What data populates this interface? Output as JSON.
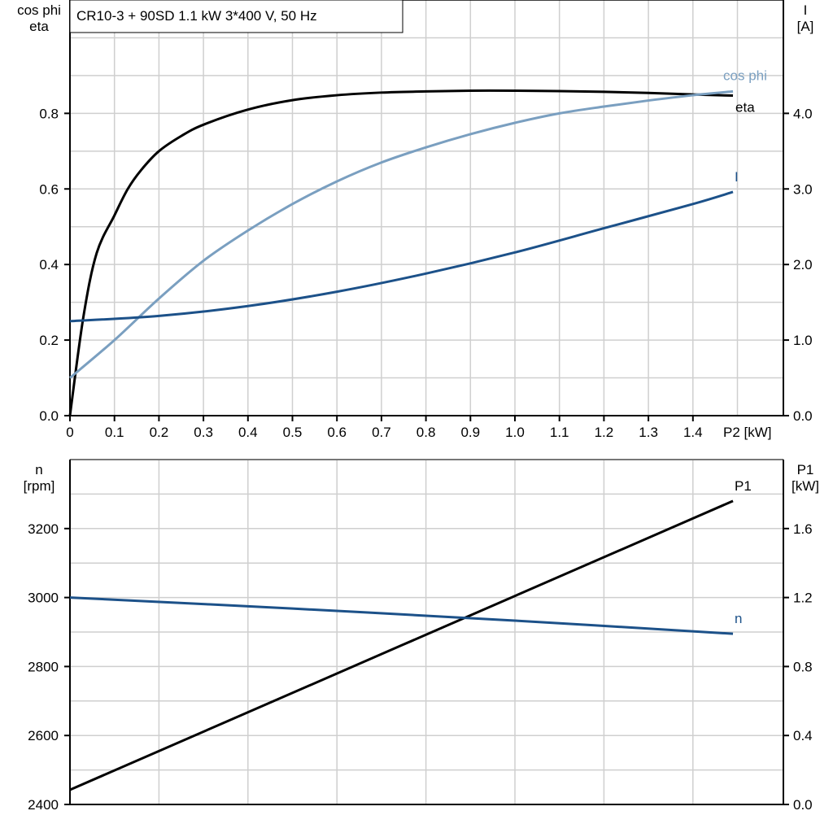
{
  "chart_data": [
    {
      "type": "line",
      "title": "CR10-3 + 90SD   1.1 kW   3*400 V, 50 Hz",
      "xlabel": "P2 [kW]",
      "ylabel_left": [
        "cos phi",
        "eta"
      ],
      "ylabel_right": [
        "I",
        "[A]"
      ],
      "xlim": [
        0,
        1.6
      ],
      "ylim_left": [
        0,
        1.1
      ],
      "ylim_right": [
        0,
        5.5
      ],
      "x_ticks": [
        "0",
        "0.1",
        "0.2",
        "0.3",
        "0.4",
        "0.5",
        "0.6",
        "0.7",
        "0.8",
        "0.9",
        "1.0",
        "1.1",
        "1.2",
        "1.3",
        "1.4"
      ],
      "y_ticks_left": [
        "0.0",
        "0.2",
        "0.4",
        "0.6",
        "0.8"
      ],
      "y_ticks_right": [
        "0.0",
        "1.0",
        "2.0",
        "3.0",
        "4.0"
      ],
      "grid": true,
      "series": [
        {
          "name": "eta",
          "axis": "left",
          "color": "#000000",
          "x": [
            0,
            0.03,
            0.06,
            0.1,
            0.13,
            0.16,
            0.2,
            0.25,
            0.3,
            0.4,
            0.5,
            0.6,
            0.7,
            0.8,
            0.9,
            1.0,
            1.1,
            1.2,
            1.3,
            1.4,
            1.49
          ],
          "y": [
            0,
            0.26,
            0.43,
            0.53,
            0.6,
            0.65,
            0.7,
            0.74,
            0.77,
            0.81,
            0.835,
            0.848,
            0.855,
            0.858,
            0.86,
            0.86,
            0.859,
            0.857,
            0.854,
            0.85,
            0.847
          ]
        },
        {
          "name": "cos phi",
          "axis": "left",
          "color": "#7a9fc0",
          "x": [
            0,
            0.1,
            0.2,
            0.3,
            0.4,
            0.5,
            0.6,
            0.7,
            0.8,
            0.9,
            1.0,
            1.1,
            1.2,
            1.3,
            1.4,
            1.49
          ],
          "y": [
            0.1,
            0.2,
            0.31,
            0.41,
            0.49,
            0.56,
            0.62,
            0.67,
            0.71,
            0.745,
            0.775,
            0.8,
            0.818,
            0.834,
            0.848,
            0.858
          ]
        },
        {
          "name": "I",
          "axis": "right",
          "color": "#1c5189",
          "x": [
            0,
            0.2,
            0.4,
            0.6,
            0.8,
            1.0,
            1.2,
            1.4,
            1.49
          ],
          "y": [
            1.25,
            1.32,
            1.45,
            1.64,
            1.88,
            2.16,
            2.48,
            2.8,
            2.96
          ]
        }
      ]
    },
    {
      "type": "line",
      "ylabel_left": [
        "n",
        "[rpm]"
      ],
      "ylabel_right": [
        "P1",
        "[kW]"
      ],
      "xlim": [
        0,
        1.6
      ],
      "ylim_left": [
        2400,
        3400
      ],
      "ylim_right": [
        0,
        2.0
      ],
      "y_ticks_left": [
        "2400",
        "2600",
        "2800",
        "3000",
        "3200"
      ],
      "y_ticks_right": [
        "0.0",
        "0.4",
        "0.8",
        "1.2",
        "1.6"
      ],
      "grid": true,
      "series": [
        {
          "name": "P1",
          "axis": "right",
          "color": "#000000",
          "x": [
            0,
            1.49
          ],
          "y": [
            0.085,
            1.76
          ]
        },
        {
          "name": "n",
          "axis": "left",
          "color": "#1c5189",
          "x": [
            0,
            0.5,
            1.0,
            1.49
          ],
          "y": [
            3000,
            2968,
            2933,
            2895
          ]
        }
      ]
    }
  ]
}
